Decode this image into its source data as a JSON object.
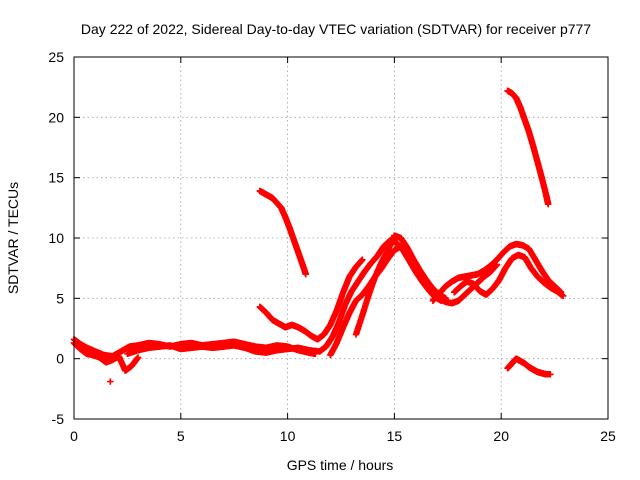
{
  "chart_data": {
    "type": "scatter",
    "title": "Day 222 of 2022, Sidereal Day-to-day VTEC variation (SDTVAR) for receiver p777",
    "xlabel": "GPS time / hours",
    "ylabel": "SDTVAR / TECUs",
    "xlim": [
      0,
      25
    ],
    "ylim": [
      -5,
      25
    ],
    "xticks": [
      0,
      5,
      10,
      15,
      20,
      25
    ],
    "yticks": [
      -5,
      0,
      5,
      10,
      15,
      20,
      25
    ],
    "grid": true,
    "marker": "+",
    "color": "#ff0000",
    "series": [
      {
        "name": "arc-baseline",
        "x": [
          0.0,
          0.3,
          0.6,
          1.0,
          1.4,
          1.8,
          2.2,
          2.6,
          3.0,
          3.5,
          4.0,
          4.5,
          5.0,
          5.5,
          6.0,
          6.5,
          7.0,
          7.5,
          8.0,
          8.5,
          9.0,
          9.5,
          10.0,
          10.5,
          11.0,
          11.3
        ],
        "y": [
          1.6,
          1.2,
          0.9,
          0.6,
          0.3,
          0.2,
          0.6,
          1.0,
          1.1,
          1.3,
          1.2,
          1.0,
          1.2,
          1.3,
          1.1,
          1.2,
          1.3,
          1.4,
          1.2,
          1.0,
          0.9,
          1.1,
          1.0,
          0.7,
          0.5,
          0.4
        ]
      },
      {
        "name": "arc-low-early",
        "x": [
          0.0,
          0.3,
          0.6,
          0.9,
          1.2,
          1.5,
          1.8,
          2.1,
          2.4,
          2.7,
          3.0
        ],
        "y": [
          1.3,
          0.8,
          0.4,
          0.3,
          0.1,
          -0.3,
          -0.1,
          0.2,
          -1.0,
          -0.6,
          0.1
        ]
      },
      {
        "name": "arc-mid",
        "x": [
          2.5,
          3.0,
          3.5,
          4.0,
          4.5,
          5.0,
          5.5,
          6.0,
          6.5,
          7.0,
          7.5,
          8.0,
          8.5,
          9.0,
          9.5,
          10.0,
          10.5,
          11.0,
          11.5
        ],
        "y": [
          0.4,
          0.7,
          0.9,
          1.0,
          1.1,
          0.8,
          0.9,
          1.0,
          0.9,
          1.0,
          1.1,
          0.9,
          0.6,
          0.5,
          0.7,
          0.8,
          0.9,
          0.7,
          0.6
        ]
      },
      {
        "name": "arc-dip-recover",
        "x": [
          8.7,
          9.0,
          9.3,
          9.6,
          9.9,
          10.2,
          10.5,
          10.8,
          11.1,
          11.4,
          11.7,
          12.0,
          12.3,
          12.6,
          12.9,
          13.2,
          13.5
        ],
        "y": [
          4.3,
          3.8,
          3.2,
          2.9,
          2.6,
          2.8,
          2.6,
          2.3,
          1.9,
          1.6,
          2.0,
          2.8,
          4.0,
          5.5,
          6.8,
          7.6,
          8.2
        ]
      },
      {
        "name": "arc-rise-a",
        "x": [
          11.5,
          11.8,
          12.1,
          12.4,
          12.7,
          13.0,
          13.3,
          13.6,
          13.9,
          14.2,
          14.5,
          14.8,
          15.1,
          15.4,
          15.7,
          16.0,
          16.3,
          16.6,
          16.9,
          17.2
        ],
        "y": [
          0.6,
          1.0,
          1.8,
          3.0,
          4.5,
          5.6,
          6.4,
          7.2,
          7.9,
          8.5,
          9.3,
          9.8,
          9.6,
          9.0,
          8.1,
          7.2,
          6.4,
          5.7,
          5.1,
          4.8
        ]
      },
      {
        "name": "arc-rise-b",
        "x": [
          12.0,
          12.3,
          12.6,
          12.9,
          13.2,
          13.5,
          13.8,
          14.1,
          14.4,
          14.7,
          15.0,
          15.3,
          15.6,
          15.9,
          16.2,
          16.5,
          16.8,
          17.1,
          17.4,
          17.7,
          18.0,
          18.3,
          18.6,
          18.9,
          19.2,
          19.5,
          19.8
        ],
        "y": [
          0.3,
          1.3,
          2.6,
          3.8,
          4.8,
          5.3,
          6.0,
          6.8,
          7.5,
          8.3,
          9.0,
          9.3,
          8.6,
          7.7,
          6.8,
          6.0,
          5.4,
          5.0,
          4.7,
          4.6,
          4.8,
          5.3,
          5.8,
          6.3,
          6.8,
          7.2,
          7.8
        ]
      },
      {
        "name": "arc-rise-c",
        "x": [
          13.2,
          13.5,
          13.8,
          14.1,
          14.4,
          14.7,
          15.0,
          15.3,
          15.6,
          15.9,
          16.2,
          16.5,
          16.8,
          17.1,
          17.4
        ],
        "y": [
          2.0,
          3.6,
          5.3,
          6.8,
          8.0,
          9.0,
          10.2,
          10.0,
          9.2,
          8.2,
          7.3,
          6.5,
          5.8,
          5.3,
          5.0
        ]
      },
      {
        "name": "arc-late-a",
        "x": [
          16.8,
          17.1,
          17.4,
          17.7,
          18.0,
          18.3,
          18.6,
          18.9,
          19.2,
          19.5,
          19.8,
          20.1,
          20.4,
          20.7,
          21.0,
          21.3,
          21.6,
          21.9,
          22.2,
          22.5,
          22.8
        ],
        "y": [
          4.8,
          5.4,
          6.0,
          6.4,
          6.7,
          6.8,
          6.9,
          7.0,
          7.3,
          7.7,
          8.2,
          8.8,
          9.3,
          9.5,
          9.4,
          9.1,
          8.2,
          7.3,
          6.5,
          6.0,
          5.5
        ]
      },
      {
        "name": "arc-late-b",
        "x": [
          17.8,
          18.1,
          18.4,
          18.7,
          19.0,
          19.3,
          19.6,
          19.9,
          20.2,
          20.5,
          20.8,
          21.1,
          21.4,
          21.7,
          22.0,
          22.3,
          22.6,
          22.9
        ],
        "y": [
          5.5,
          6.0,
          6.4,
          6.2,
          5.6,
          5.3,
          5.8,
          6.5,
          7.5,
          8.3,
          8.6,
          8.4,
          7.5,
          6.8,
          6.3,
          5.9,
          5.6,
          5.2
        ]
      },
      {
        "name": "arc-steep-mid",
        "x": [
          8.7,
          8.9,
          9.1,
          9.3,
          9.5,
          9.7,
          9.9,
          10.1,
          10.3,
          10.5,
          10.7,
          10.85
        ],
        "y": [
          13.9,
          13.7,
          13.5,
          13.3,
          12.9,
          12.5,
          11.7,
          10.8,
          9.8,
          8.8,
          7.8,
          7.0
        ]
      },
      {
        "name": "arc-steep-late",
        "x": [
          20.3,
          20.5,
          20.7,
          20.9,
          21.1,
          21.3,
          21.5,
          21.7,
          21.9,
          22.1,
          22.2
        ],
        "y": [
          22.2,
          22.0,
          21.6,
          20.8,
          19.8,
          18.8,
          17.6,
          16.3,
          15.0,
          13.6,
          12.8
        ]
      },
      {
        "name": "arc-negative-late",
        "x": [
          20.3,
          20.5,
          20.7,
          20.9,
          21.1,
          21.3,
          21.5,
          21.7,
          21.9,
          22.1,
          22.3
        ],
        "y": [
          -0.8,
          -0.4,
          0.0,
          -0.2,
          -0.4,
          -0.7,
          -0.9,
          -1.1,
          -1.2,
          -1.3,
          -1.3
        ]
      },
      {
        "name": "outlier",
        "x": [
          1.7
        ],
        "y": [
          -1.9
        ]
      }
    ]
  }
}
